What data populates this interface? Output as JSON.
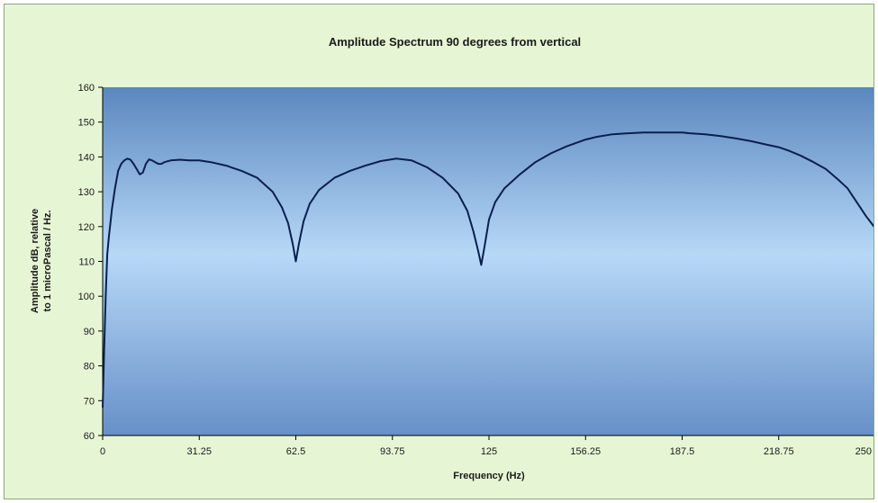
{
  "chart_data": {
    "type": "line",
    "title": "Amplitude Spectrum 90 degrees from vertical",
    "xlabel": "Frequency (Hz)",
    "ylabel_lines": [
      "Amplitude dB, relative",
      "to 1 microPascal / Hz."
    ],
    "xlim": [
      0,
      250
    ],
    "ylim": [
      60,
      160
    ],
    "x_ticks": [
      0,
      31.25,
      62.5,
      93.75,
      125,
      156.25,
      187.5,
      218.75,
      250
    ],
    "x_tick_labels": [
      "0",
      "31.25",
      "62.5",
      "93.75",
      "125",
      "156.25",
      "187.5",
      "218.75",
      "250"
    ],
    "y_ticks": [
      60,
      70,
      80,
      90,
      100,
      110,
      120,
      130,
      140,
      150,
      160
    ],
    "y_tick_labels": [
      "60",
      "70",
      "80",
      "90",
      "100",
      "110",
      "120",
      "130",
      "140",
      "150",
      "160"
    ],
    "grid": false,
    "legend": false,
    "series": [
      {
        "x": [
          0,
          0.5,
          1,
          1.5,
          2,
          3,
          4,
          5,
          6,
          7,
          8,
          9,
          10,
          11,
          12,
          13,
          14,
          15,
          16,
          17,
          18,
          19,
          20,
          22,
          25,
          28,
          31.25,
          35,
          40,
          45,
          50,
          55,
          58,
          60,
          61.5,
          62.5,
          63.5,
          65,
          67,
          70,
          75,
          80,
          85,
          90,
          95,
          100,
          105,
          110,
          115,
          118,
          120,
          121.5,
          122.5,
          123.5,
          125,
          127,
          130,
          135,
          140,
          145,
          150,
          156.25,
          160,
          165,
          170,
          175,
          180,
          185,
          187.5,
          190,
          195,
          200,
          205,
          210,
          215,
          218.75,
          222,
          226,
          230,
          234,
          238,
          241,
          244,
          247,
          250
        ],
        "y": [
          68,
          85,
          100,
          112,
          117,
          125,
          131,
          136,
          138,
          139,
          139.5,
          139.2,
          138,
          136.5,
          135,
          135.5,
          138,
          139.3,
          139,
          138.5,
          138,
          138,
          138.5,
          139,
          139.2,
          139,
          139,
          138.5,
          137.5,
          136,
          134,
          130,
          125.5,
          121,
          115,
          110,
          115,
          121.5,
          126.5,
          130.5,
          134,
          136,
          137.5,
          138.8,
          139.5,
          139,
          137,
          134,
          129.5,
          124.5,
          118.5,
          113,
          109,
          114,
          122,
          127,
          131,
          135,
          138.5,
          141,
          143,
          145,
          145.8,
          146.5,
          146.8,
          147,
          147,
          147,
          147,
          146.8,
          146.5,
          146,
          145.3,
          144.5,
          143.5,
          142.8,
          141.8,
          140.3,
          138.5,
          136.5,
          133.5,
          131,
          127,
          123,
          119.5
        ]
      }
    ],
    "line_color": "#0b1f4e",
    "plot_bg_top": "#5a87bf",
    "plot_bg_mid": "#b7d8f7",
    "plot_bg_bottom": "#6790c8",
    "frame_bg": "#e6f6d4"
  }
}
